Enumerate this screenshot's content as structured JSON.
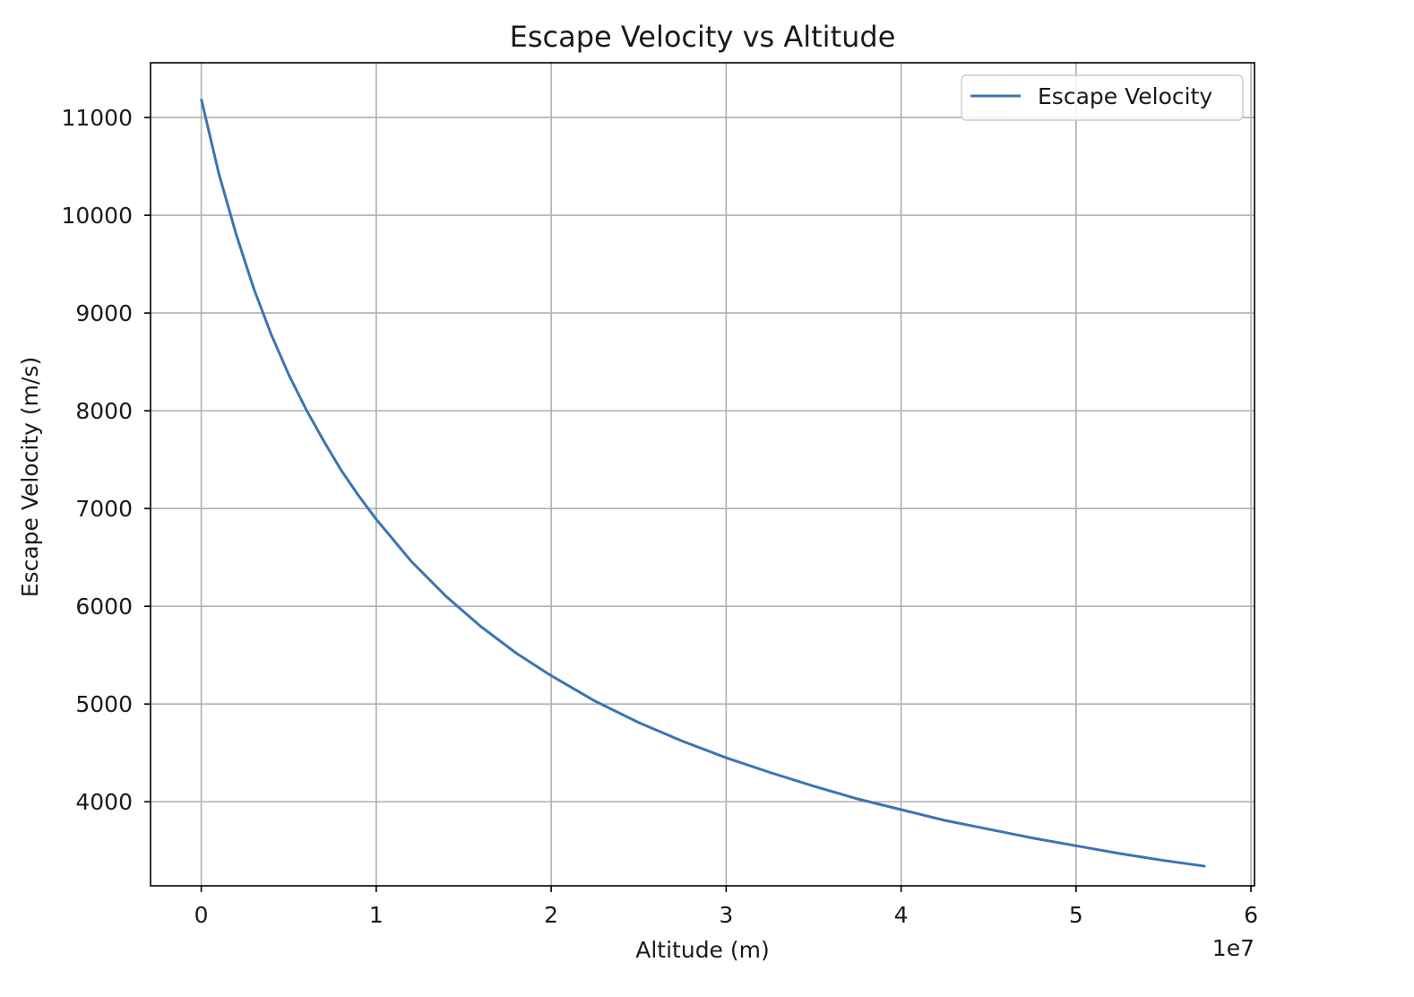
{
  "chart_data": {
    "type": "line",
    "title": "Escape Velocity vs Altitude",
    "xlabel": "Altitude (m)",
    "ylabel": "Escape Velocity (m/s)",
    "x_offset_label": "1e7",
    "x_scale": 10000000,
    "xlim": [
      -2900000,
      60200000
    ],
    "ylim": [
      3140,
      11560
    ],
    "x_ticks": [
      0,
      10000000,
      20000000,
      30000000,
      40000000,
      50000000,
      60000000
    ],
    "x_tick_labels": [
      "0",
      "1",
      "2",
      "3",
      "4",
      "5",
      "6"
    ],
    "y_ticks": [
      4000,
      5000,
      6000,
      7000,
      8000,
      9000,
      10000,
      11000
    ],
    "y_tick_labels": [
      "4000",
      "5000",
      "6000",
      "7000",
      "8000",
      "9000",
      "10000",
      "11000"
    ],
    "grid": true,
    "legend": {
      "position": "top-right"
    },
    "series": [
      {
        "name": "Escape Velocity",
        "color": "#3a75b5",
        "x": [
          0,
          1000000,
          2000000,
          3000000,
          4000000,
          5000000,
          6000000,
          7000000,
          8000000,
          9000000,
          10000000,
          12000000,
          14000000,
          16000000,
          18000000,
          20000000,
          22500000,
          25000000,
          27500000,
          30000000,
          32500000,
          35000000,
          37500000,
          40000000,
          42500000,
          45000000,
          47500000,
          50000000,
          52500000,
          55000000,
          57400000
        ],
        "y": [
          11190,
          10430,
          9800,
          9250,
          8780,
          8370,
          8010,
          7690,
          7390,
          7130,
          6890,
          6460,
          6100,
          5790,
          5520,
          5290,
          5030,
          4810,
          4620,
          4450,
          4300,
          4160,
          4030,
          3920,
          3810,
          3720,
          3630,
          3550,
          3470,
          3400,
          3340
        ]
      }
    ]
  }
}
